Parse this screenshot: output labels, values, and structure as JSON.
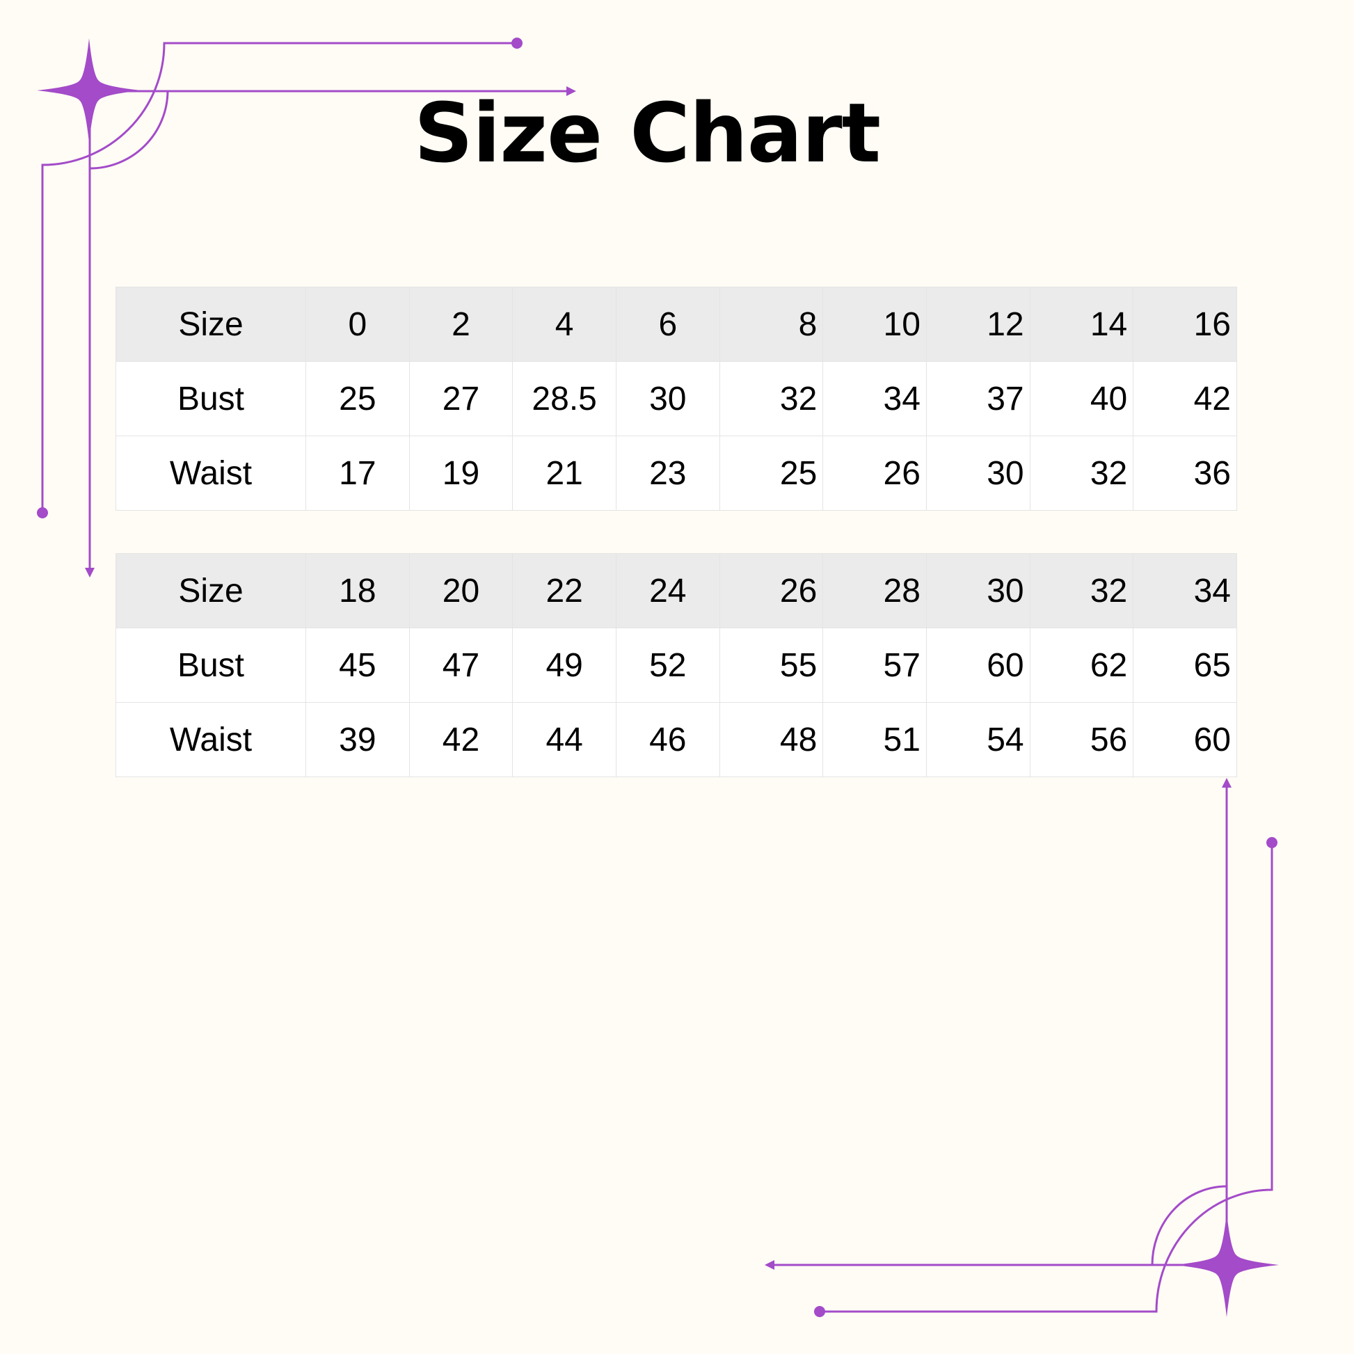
{
  "title": "Size Chart",
  "colors": {
    "accent": "#a34bc9",
    "background": "#fffcf5",
    "header_row": "#ebebeb",
    "row": "#ffffff"
  },
  "decorations": [
    "sparkle-star-icon",
    "sparkle-star-icon"
  ],
  "tables": [
    {
      "rows": [
        {
          "label": "Size",
          "values": [
            "0",
            "2",
            "4",
            "6",
            "8",
            "10",
            "12",
            "14",
            "16"
          ]
        },
        {
          "label": "Bust",
          "values": [
            "25",
            "27",
            "28.5",
            "30",
            "32",
            "34",
            "37",
            "40",
            "42"
          ]
        },
        {
          "label": "Waist",
          "values": [
            "17",
            "19",
            "21",
            "23",
            "25",
            "26",
            "30",
            "32",
            "36"
          ]
        }
      ]
    },
    {
      "rows": [
        {
          "label": "Size",
          "values": [
            "18",
            "20",
            "22",
            "24",
            "26",
            "28",
            "30",
            "32",
            "34"
          ]
        },
        {
          "label": "Bust",
          "values": [
            "45",
            "47",
            "49",
            "52",
            "55",
            "57",
            "60",
            "62",
            "65"
          ]
        },
        {
          "label": "Waist",
          "values": [
            "39",
            "42",
            "44",
            "46",
            "48",
            "51",
            "54",
            "56",
            "60"
          ]
        }
      ]
    }
  ]
}
